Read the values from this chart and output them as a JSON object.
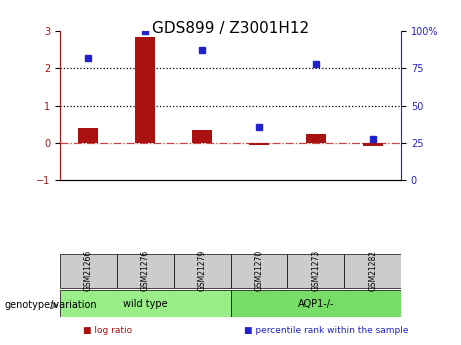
{
  "title": "GDS899 / Z3001H12",
  "samples": [
    "GSM21266",
    "GSM21276",
    "GSM21279",
    "GSM21270",
    "GSM21273",
    "GSM21282"
  ],
  "log_ratio": [
    0.4,
    2.85,
    0.35,
    -0.05,
    0.25,
    -0.07
  ],
  "percentile_rank": [
    82,
    100,
    87,
    36,
    78,
    28
  ],
  "bar_color": "#aa1111",
  "dot_color": "#2222cc",
  "groups": [
    {
      "label": "wild type",
      "samples": [
        "GSM21266",
        "GSM21276",
        "GSM21279"
      ],
      "color": "#99ee88"
    },
    {
      "label": "AQP1-/-",
      "samples": [
        "GSM21270",
        "GSM21273",
        "GSM21282"
      ],
      "color": "#77dd66"
    }
  ],
  "group_label": "genotype/variation",
  "ylim_left": [
    -1.0,
    3.0
  ],
  "ylim_right": [
    0,
    100
  ],
  "yticks_left": [
    -1,
    0,
    1,
    2,
    3
  ],
  "yticks_right": [
    0,
    25,
    50,
    75,
    100
  ],
  "hline_values": [
    0,
    1,
    2
  ],
  "hline_styles": [
    "dashdot",
    "dotted",
    "dotted"
  ],
  "hline_colors": [
    "#cc4444",
    "#000000",
    "#000000"
  ],
  "legend_items": [
    {
      "label": "log ratio",
      "color": "#aa1111"
    },
    {
      "label": "percentile rank within the sample",
      "color": "#2222cc"
    }
  ],
  "title_fontsize": 11,
  "tick_fontsize": 7,
  "label_fontsize": 8
}
